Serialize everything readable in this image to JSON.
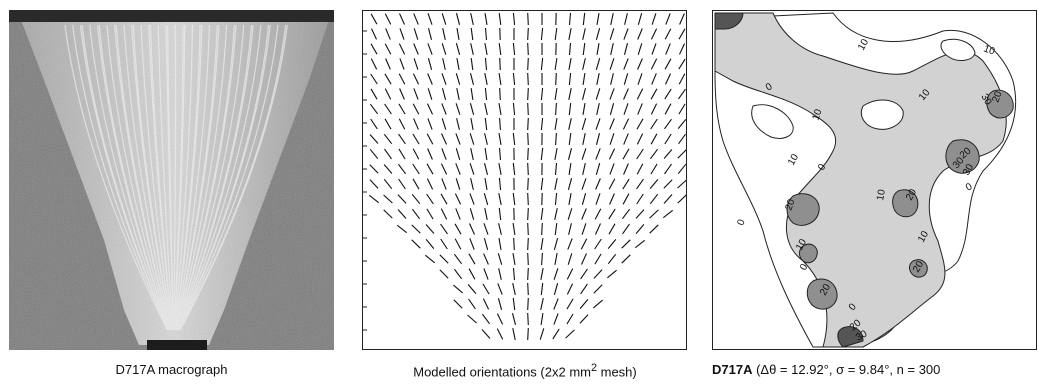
{
  "panels": {
    "macrograph": {
      "caption": "D717A macrograph",
      "colors": {
        "background": "#7c7c7c",
        "weld": "#c9c9c9",
        "top_bar": "#2a2a2a"
      }
    },
    "orientations": {
      "caption_prefix": "Modelled orientations (2x2 mm",
      "caption_sup": "2",
      "caption_suffix": " mesh)"
    },
    "contour": {
      "caption_bold": "D717A",
      "caption_rest": " (Δθ = 12.92°, σ = 9.84°, n = 300",
      "contour_labels": [
        "10",
        "10",
        "10",
        "10",
        "10",
        "0",
        "0",
        "0",
        "20",
        "20",
        "20",
        "20",
        "30",
        "30",
        "30",
        "0",
        "10",
        "20",
        "0",
        "20",
        "10",
        "0",
        "20",
        "30",
        "10"
      ],
      "colors": {
        "level1": "#d2d2d2",
        "level2": "#8f8f8f",
        "level3": "#555555",
        "line": "#222222"
      }
    }
  }
}
